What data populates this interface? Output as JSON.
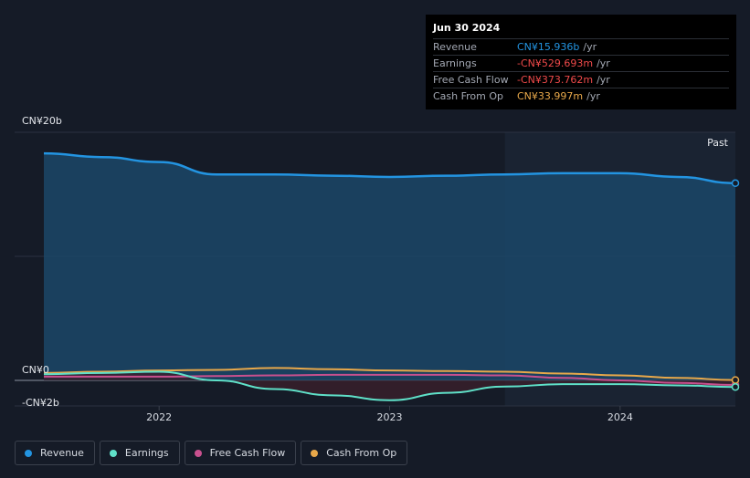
{
  "tooltip": {
    "date": "Jun 30 2024",
    "rows": [
      {
        "label": "Revenue",
        "value": "CN¥15.936b",
        "unit": "/yr",
        "color": "#2394e1"
      },
      {
        "label": "Earnings",
        "value": "-CN¥529.693m",
        "unit": "/yr",
        "color": "#f04a4a"
      },
      {
        "label": "Free Cash Flow",
        "value": "-CN¥373.762m",
        "unit": "/yr",
        "color": "#f04a4a"
      },
      {
        "label": "Cash From Op",
        "value": "CN¥33.997m",
        "unit": "/yr",
        "color": "#e8a84a"
      }
    ]
  },
  "past_label": "Past",
  "legend": [
    {
      "label": "Revenue",
      "color": "#2394e1"
    },
    {
      "label": "Earnings",
      "color": "#5fe0c8"
    },
    {
      "label": "Free Cash Flow",
      "color": "#c8508e"
    },
    {
      "label": "Cash From Op",
      "color": "#e8a84a"
    }
  ],
  "chart_data": {
    "type": "line",
    "y_tick_labels": [
      "CN¥20b",
      "CN¥0",
      "-CN¥2b"
    ],
    "ylim": [
      -2,
      20
    ],
    "x_tick_labels": [
      "2022",
      "2023",
      "2024"
    ],
    "xlim": [
      2021.5,
      2024.5
    ],
    "grid": true,
    "series": [
      {
        "name": "Revenue",
        "color": "#2394e1",
        "x": [
          2021.5,
          2021.75,
          2022.0,
          2022.25,
          2022.5,
          2022.75,
          2023.0,
          2023.25,
          2023.5,
          2023.75,
          2024.0,
          2024.25,
          2024.5
        ],
        "y": [
          18.3,
          18.0,
          17.6,
          16.6,
          16.6,
          16.5,
          16.4,
          16.5,
          16.6,
          16.7,
          16.7,
          16.4,
          15.9
        ]
      },
      {
        "name": "Earnings",
        "color": "#5fe0c8",
        "x": [
          2021.5,
          2021.75,
          2022.0,
          2022.25,
          2022.5,
          2022.75,
          2023.0,
          2023.25,
          2023.5,
          2023.75,
          2024.0,
          2024.25,
          2024.5
        ],
        "y": [
          0.5,
          0.6,
          0.7,
          0.0,
          -0.7,
          -1.2,
          -1.6,
          -1.0,
          -0.5,
          -0.3,
          -0.3,
          -0.4,
          -0.53
        ]
      },
      {
        "name": "Free Cash Flow",
        "color": "#c8508e",
        "x": [
          2021.5,
          2021.75,
          2022.0,
          2022.25,
          2022.5,
          2022.75,
          2023.0,
          2023.25,
          2023.5,
          2023.75,
          2024.0,
          2024.25,
          2024.5
        ],
        "y": [
          0.3,
          0.3,
          0.3,
          0.35,
          0.4,
          0.45,
          0.45,
          0.45,
          0.4,
          0.2,
          0.0,
          -0.2,
          -0.37
        ]
      },
      {
        "name": "Cash From Op",
        "color": "#e8a84a",
        "x": [
          2021.5,
          2021.75,
          2022.0,
          2022.25,
          2022.5,
          2022.75,
          2023.0,
          2023.25,
          2023.5,
          2023.75,
          2024.0,
          2024.25,
          2024.5
        ],
        "y": [
          0.6,
          0.7,
          0.8,
          0.85,
          1.0,
          0.9,
          0.8,
          0.75,
          0.7,
          0.55,
          0.4,
          0.2,
          0.03
        ]
      }
    ]
  }
}
